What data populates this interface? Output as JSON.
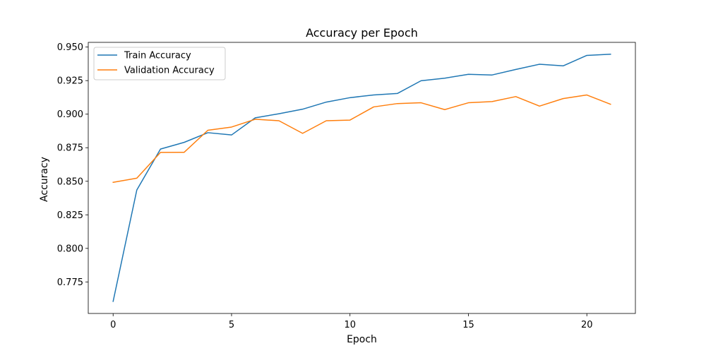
{
  "chart_data": {
    "type": "line",
    "title": "Accuracy per Epoch",
    "xlabel": "Epoch",
    "ylabel": "Accuracy",
    "xlim": [
      -1.05,
      22.05
    ],
    "ylim": [
      0.7515,
      0.9535
    ],
    "xticks": [
      0,
      5,
      10,
      15,
      20
    ],
    "yticks": [
      0.775,
      0.8,
      0.825,
      0.85,
      0.875,
      0.9,
      0.925,
      0.95
    ],
    "grid": false,
    "legend_position": "upper-left",
    "x": [
      0,
      1,
      2,
      3,
      4,
      5,
      6,
      7,
      8,
      9,
      10,
      11,
      12,
      13,
      14,
      15,
      16,
      17,
      18,
      19,
      20,
      21
    ],
    "series": [
      {
        "name": "Train Accuracy",
        "color": "#1f77b4",
        "values": [
          0.7605,
          0.8435,
          0.874,
          0.879,
          0.8862,
          0.8845,
          0.8973,
          0.9003,
          0.9037,
          0.909,
          0.9123,
          0.9143,
          0.9154,
          0.9249,
          0.9268,
          0.9297,
          0.9292,
          0.9333,
          0.9372,
          0.936,
          0.9438,
          0.9447
        ]
      },
      {
        "name": "Validation Accuracy",
        "color": "#ff7f0e",
        "values": [
          0.8492,
          0.8523,
          0.8715,
          0.8716,
          0.888,
          0.8904,
          0.8962,
          0.8951,
          0.8857,
          0.8951,
          0.8956,
          0.9054,
          0.9079,
          0.9085,
          0.9034,
          0.9085,
          0.9094,
          0.9131,
          0.906,
          0.9116,
          0.9143,
          0.9074
        ]
      }
    ]
  }
}
